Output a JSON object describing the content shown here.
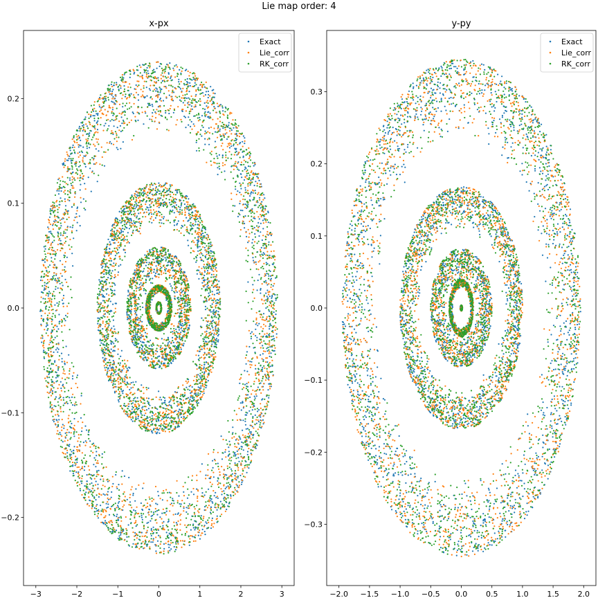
{
  "figure": {
    "suptitle": "Lie map order: 4"
  },
  "colors": {
    "Exact": "#1f77b4",
    "Lie_corr": "#ff7f0e",
    "RK_corr": "#2ca02c"
  },
  "chart_data": [
    {
      "type": "scatter",
      "title": "x-px",
      "xlabel": "",
      "ylabel": "",
      "xlim": [
        -3.3,
        3.3
      ],
      "ylim": [
        -0.265,
        0.265
      ],
      "xticks": [
        -3,
        -2,
        -1,
        0,
        1,
        2,
        3
      ],
      "xtick_labels": [
        "−3",
        "−2",
        "−1",
        "0",
        "1",
        "2",
        "3"
      ],
      "yticks": [
        -0.2,
        -0.1,
        0.0,
        0.1,
        0.2
      ],
      "ytick_labels": [
        "−0.2",
        "−0.1",
        "0.0",
        "0.1",
        "0.2"
      ],
      "legend": [
        "Exact",
        "Lie_corr",
        "RK_corr"
      ],
      "legend_position": "upper-right",
      "grid": false,
      "rings": [
        {
          "ax": 2.9,
          "bx": 2.1,
          "ay": 0.235,
          "by": 0.165,
          "counts": [
            1400,
            1400,
            1400
          ],
          "ripple": 0
        },
        {
          "ax": 1.5,
          "bx": 1.0,
          "ay": 0.12,
          "by": 0.078,
          "counts": [
            900,
            900,
            900
          ],
          "ripple": 0.04
        },
        {
          "ax": 0.78,
          "bx": 0.38,
          "ay": 0.058,
          "by": 0.026,
          "counts": [
            500,
            500,
            500
          ],
          "ripple": 0.1
        },
        {
          "ax": 0.32,
          "bx": 0.2,
          "ay": 0.022,
          "by": 0.014,
          "counts": [
            300,
            300,
            300
          ],
          "ripple": 0
        },
        {
          "ax": 0.07,
          "bx": 0.04,
          "ay": 0.006,
          "by": 0.003,
          "counts": [
            60,
            60,
            60
          ],
          "ripple": 0
        }
      ]
    },
    {
      "type": "scatter",
      "title": "y-py",
      "xlabel": "",
      "ylabel": "",
      "xlim": [
        -2.2,
        2.2
      ],
      "ylim": [
        -0.385,
        0.385
      ],
      "xticks": [
        -2.0,
        -1.5,
        -1.0,
        -0.5,
        0.0,
        0.5,
        1.0,
        1.5,
        2.0
      ],
      "xtick_labels": [
        "−2.0",
        "−1.5",
        "−1.0",
        "−0.5",
        "0.0",
        "0.5",
        "1.0",
        "1.5",
        "2.0"
      ],
      "yticks": [
        -0.3,
        -0.2,
        -0.1,
        0.0,
        0.1,
        0.2,
        0.3
      ],
      "ytick_labels": [
        "−0.3",
        "−0.2",
        "−0.1",
        "0.0",
        "0.1",
        "0.2",
        "0.3"
      ],
      "legend": [
        "Exact",
        "Lie_corr",
        "RK_corr"
      ],
      "legend_position": "upper-right",
      "grid": false,
      "rings": [
        {
          "ax": 1.95,
          "bx": 1.35,
          "ay": 0.345,
          "by": 0.235,
          "counts": [
            1300,
            1300,
            1300
          ],
          "ripple": 0
        },
        {
          "ax": 1.0,
          "bx": 0.68,
          "ay": 0.168,
          "by": 0.11,
          "counts": [
            900,
            900,
            900
          ],
          "ripple": 0.05
        },
        {
          "ax": 0.5,
          "bx": 0.25,
          "ay": 0.082,
          "by": 0.035,
          "counts": [
            500,
            500,
            500
          ],
          "ripple": 0.1
        },
        {
          "ax": 0.2,
          "bx": 0.14,
          "ay": 0.04,
          "by": 0.028,
          "counts": [
            300,
            300,
            300
          ],
          "ripple": 0
        },
        {
          "ax": 0.02,
          "bx": 0.01,
          "ay": 0.004,
          "by": 0.002,
          "counts": [
            30,
            30,
            30
          ],
          "ripple": 0
        }
      ]
    }
  ]
}
